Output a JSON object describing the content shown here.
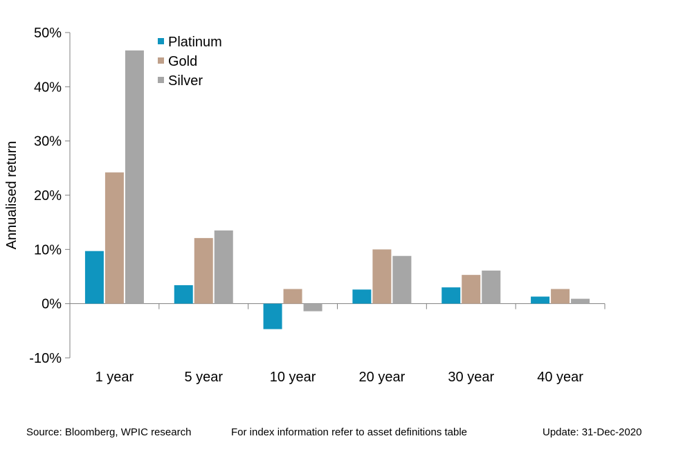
{
  "chart_data": {
    "type": "bar",
    "title": "",
    "xlabel": "",
    "ylabel": "Annualised return",
    "ylim": [
      -10,
      50
    ],
    "yticks": [
      -10,
      0,
      10,
      20,
      30,
      40,
      50
    ],
    "ytick_format": "%",
    "categories": [
      "1 year",
      "5 year",
      "10 year",
      "20 year",
      "30 year",
      "40 year"
    ],
    "series": [
      {
        "name": "Platinum",
        "color": "#0f95bf",
        "values": [
          9.7,
          3.4,
          -4.7,
          2.6,
          3.0,
          1.3
        ]
      },
      {
        "name": "Gold",
        "color": "#bfa08a",
        "values": [
          24.2,
          12.1,
          2.7,
          10.0,
          5.3,
          2.7
        ]
      },
      {
        "name": "Silver",
        "color": "#a6a6a6",
        "values": [
          46.7,
          13.5,
          -1.4,
          8.8,
          6.1,
          0.9
        ]
      }
    ],
    "legend_position": "top-left",
    "grid": false
  },
  "footer": {
    "source": "Source: Bloomberg, WPIC research",
    "note": "For index information refer to asset definitions table",
    "update": "Update: 31-Dec-2020"
  }
}
